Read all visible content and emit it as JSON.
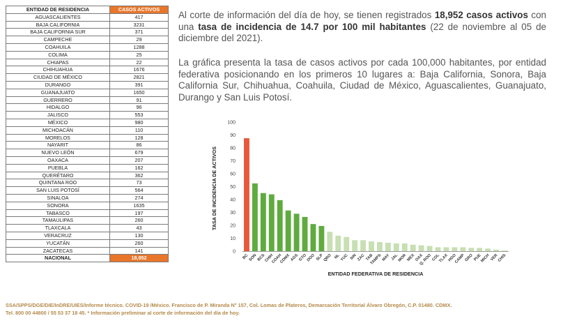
{
  "table": {
    "header_entity": "ENTIDAD DE RESIDENCIA",
    "header_cases": "CASOS ACTIVOS",
    "rows": [
      {
        "entity": "AGUASCALIENTES",
        "cases": "417"
      },
      {
        "entity": "BAJA CALIFORNIA",
        "cases": "3231"
      },
      {
        "entity": "BAJA CALIFORNIA SUR",
        "cases": "371"
      },
      {
        "entity": "CAMPECHE",
        "cases": "29"
      },
      {
        "entity": "COAHUILA",
        "cases": "1288"
      },
      {
        "entity": "COLIMA",
        "cases": "25"
      },
      {
        "entity": "CHIAPAS",
        "cases": "22"
      },
      {
        "entity": "CHIHUAHUA",
        "cases": "1676"
      },
      {
        "entity": "CIUDAD DE MÉXICO",
        "cases": "2821"
      },
      {
        "entity": "DURANGO",
        "cases": "391"
      },
      {
        "entity": "GUANAJUATO",
        "cases": "1650"
      },
      {
        "entity": "GUERRERO",
        "cases": "91"
      },
      {
        "entity": "HIDALGO",
        "cases": "96"
      },
      {
        "entity": "JALISCO",
        "cases": "553"
      },
      {
        "entity": "MÉXICO",
        "cases": "980"
      },
      {
        "entity": "MICHOACÁN",
        "cases": "110"
      },
      {
        "entity": "MORELOS",
        "cases": "128"
      },
      {
        "entity": "NAYARIT",
        "cases": "86"
      },
      {
        "entity": "NUEVO LEÓN",
        "cases": "679"
      },
      {
        "entity": "OAXACA",
        "cases": "207"
      },
      {
        "entity": "PUEBLA",
        "cases": "162"
      },
      {
        "entity": "QUERÉTARO",
        "cases": "362"
      },
      {
        "entity": "QUINTANA ROO",
        "cases": "73"
      },
      {
        "entity": "SAN LUIS POTOSÍ",
        "cases": "564"
      },
      {
        "entity": "SINALOA",
        "cases": "274"
      },
      {
        "entity": "SONORA",
        "cases": "1635"
      },
      {
        "entity": "TABASCO",
        "cases": "197"
      },
      {
        "entity": "TAMAULIPAS",
        "cases": "260"
      },
      {
        "entity": "TLAXCALA",
        "cases": "43"
      },
      {
        "entity": "VERACRUZ",
        "cases": "130"
      },
      {
        "entity": "YUCATÁN",
        "cases": "260"
      },
      {
        "entity": "ZACATECAS",
        "cases": "141"
      }
    ],
    "total_label": "NACIONAL",
    "total_value": "18,952"
  },
  "text": {
    "p1_a": "Al corte de información del día de hoy, se tienen registrados ",
    "p1_b": "18,952 casos activos",
    "p1_c": " con una ",
    "p1_d": "tasa de incidencia de 14.7 por 100 mil habitantes",
    "p1_e": " (22 de noviembre al 05 de diciembre del 2021).",
    "p2": "La gráfica presenta la tasa de casos activos por cada 100,000 habitantes, por entidad federativa posicionando en los primeros 10 lugares a: Baja California, Sonora, Baja California Sur, Chihuahua, Coahuila, Ciudad de México, Aguascalientes, Guanajuato, Durango y San Luis Potosí."
  },
  "chart_data": {
    "type": "bar",
    "categories": [
      "BC",
      "SON",
      "BCS",
      "CHIH",
      "COAH",
      "CDMX",
      "AGS",
      "GTO",
      "DGO",
      "SLP",
      "QRO",
      "NL",
      "YUC",
      "SIN",
      "ZAC",
      "TAB",
      "TAMPS",
      "MAY",
      "JAL",
      "MOR",
      "MEX",
      "OAX",
      "Q. ROO",
      "COL",
      "TLAX",
      "HGO",
      "CAMP",
      "GRO",
      "PUE",
      "MICH",
      "VER",
      "CHIS"
    ],
    "values": [
      87.5,
      52.5,
      45,
      44,
      39.5,
      31.5,
      29,
      26.5,
      21,
      19.5,
      15,
      12,
      11,
      8.5,
      8.5,
      7.5,
      7,
      6.5,
      6,
      6,
      5,
      4.5,
      4,
      3,
      3,
      3,
      3,
      2.5,
      2.5,
      2,
      1.2,
      0.5
    ],
    "colors": [
      "#e8583a",
      "#5fab3f",
      "#5fab3f",
      "#5fab3f",
      "#5fab3f",
      "#5fab3f",
      "#5fab3f",
      "#5fab3f",
      "#5fab3f",
      "#5fab3f",
      "#c7dfb3",
      "#c7dfb3",
      "#c7dfb3",
      "#c7dfb3",
      "#c7dfb3",
      "#c7dfb3",
      "#c7dfb3",
      "#c7dfb3",
      "#c7dfb3",
      "#c7dfb3",
      "#c7dfb3",
      "#c7dfb3",
      "#c7dfb3",
      "#c7dfb3",
      "#c7dfb3",
      "#c7dfb3",
      "#c7dfb3",
      "#c7dfb3",
      "#c7dfb3",
      "#c7dfb3",
      "#c7dfb3",
      "#c7dfb3"
    ],
    "yticks": [
      "0",
      "10",
      "20",
      "30",
      "40",
      "50",
      "60",
      "70",
      "80",
      "90",
      "100"
    ],
    "ylim": [
      0,
      100
    ],
    "ylabel": "TASA DE INCIDENCIA DE ACTIVOS",
    "xlabel": "ENTIDAD FEDERATIVA DE RESIDENCIA",
    "grid": false,
    "legend": false
  },
  "footer": {
    "line1": "SSA/SPPS/DGE/DIE/InDRE/UIES/Informe técnico. COVID-19 /México. Francisco de P. Miranda N° 157, Col. Lomas de Plateros, Demarcación Territorial Álvaro Obregón, C.P. 01480. CDMX.",
    "line2": "Tel. 800 00 44800 / 55 53 37 18 45. * Información preliminar al corte de información del día de hoy."
  }
}
